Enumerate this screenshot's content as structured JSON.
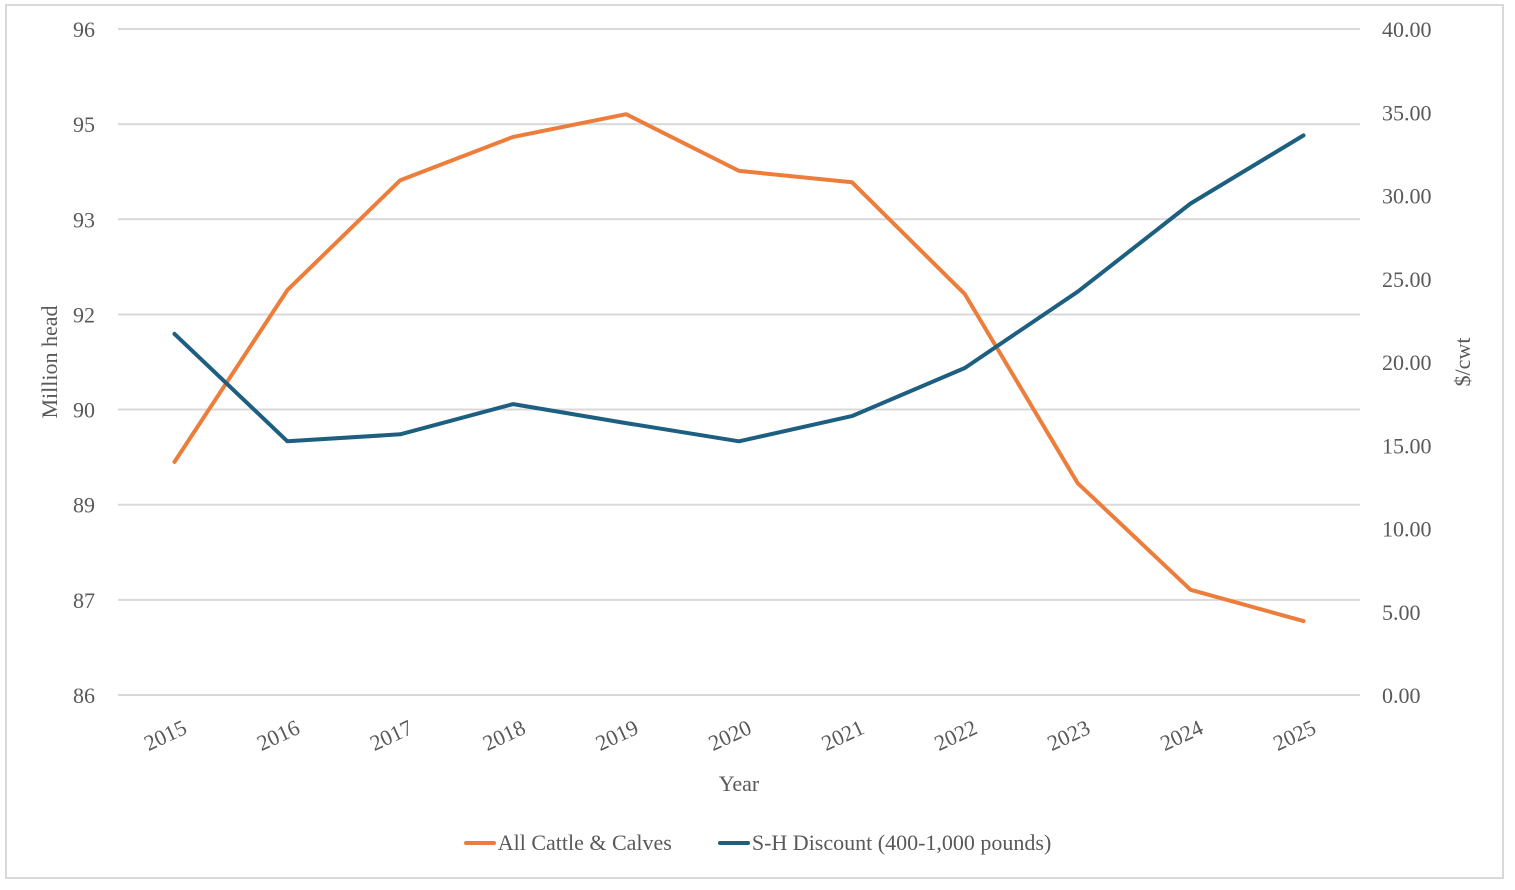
{
  "chart_data": {
    "type": "line",
    "title": "",
    "xlabel": "Year",
    "ylabel": "Million head",
    "y2label": "$/cwt",
    "categories": [
      "2015",
      "2016",
      "2017",
      "2018",
      "2019",
      "2020",
      "2021",
      "2022",
      "2023",
      "2024",
      "2025"
    ],
    "series": [
      {
        "name": "All Cattle & Calves",
        "axis": "left",
        "color": "#ED7D3B",
        "values": [
          89.5,
          92.08,
          93.73,
          94.38,
          94.72,
          93.87,
          93.7,
          92.02,
          89.18,
          87.58,
          87.11
        ]
      },
      {
        "name": "S-H Discount (400-1,000 pounds)",
        "axis": "right",
        "color": "#1D5F80",
        "values": [
          21.69,
          15.24,
          15.66,
          17.47,
          16.33,
          15.24,
          16.75,
          19.64,
          24.22,
          29.52,
          33.61
        ]
      }
    ],
    "ylim": [
      86,
      96
    ],
    "y_ticks": [
      "96",
      "95",
      "93",
      "92",
      "90",
      "89",
      "87",
      "86"
    ],
    "y_tick_values": [
      96,
      94.571,
      93.143,
      91.714,
      90.286,
      88.857,
      87.429,
      86
    ],
    "y2lim": [
      0,
      40
    ],
    "y2_ticks": [
      "40.00",
      "35.00",
      "30.00",
      "25.00",
      "20.00",
      "15.00",
      "10.00",
      "5.00",
      "0.00"
    ],
    "y2_tick_values": [
      40,
      35,
      30,
      25,
      20,
      15,
      10,
      5,
      0
    ],
    "grid": true,
    "legend": "bottom-center",
    "x_tick_rotation": "angled"
  }
}
